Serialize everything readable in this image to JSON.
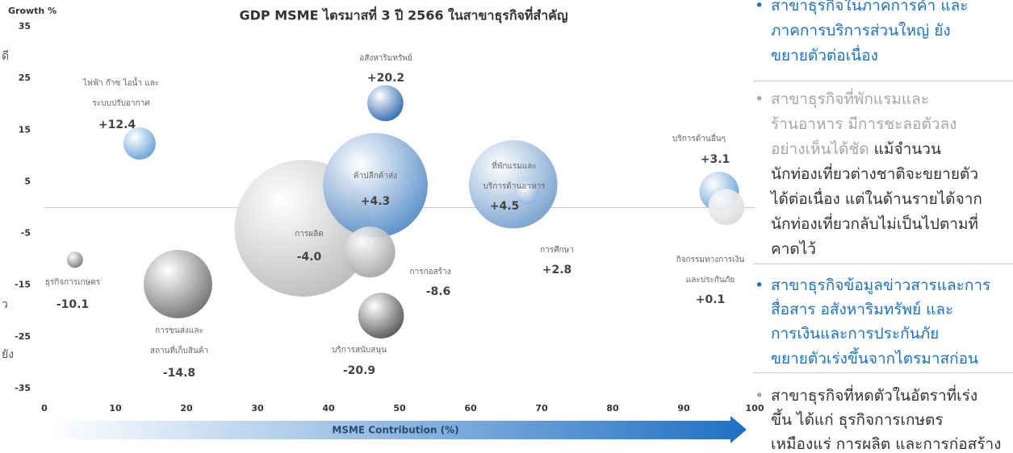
{
  "chart_data": {
    "type": "bubble",
    "title": "GDP MSME ไตรมาสที่ 3 ปี 2566 ในสาขาธุรกิจที่สำคัญ",
    "y_axis_label": "Growth %",
    "x_axis_label": "MSME Contribution (%)",
    "xlim": [
      0,
      100
    ],
    "xticks": [
      0,
      10,
      20,
      30,
      40,
      50,
      60,
      70,
      80,
      90,
      100
    ],
    "ylim": [
      -35,
      35
    ],
    "yticks": [
      -35,
      -25,
      -15,
      -5,
      5,
      15,
      25,
      35
    ],
    "points": [
      {
        "label_lines": [
          "ไฟฟ้า ก๊าซ ไอน้ำ และ",
          "ระบบปรับอากาศ"
        ],
        "x": 13.4,
        "y": 12.4,
        "value_label": "+12.4",
        "size": 4,
        "color": "#5b9bd5"
      },
      {
        "label_lines": [
          "อสังหาริมทรัพย์"
        ],
        "x": 48,
        "y": 20.2,
        "value_label": "+20.2",
        "size": 5,
        "color": "#1f5fa8"
      },
      {
        "label_lines": [
          "ค้าปลีกค้าส่ง"
        ],
        "x": 46.6,
        "y": 4.3,
        "value_label": "+4.3",
        "size": 42,
        "color": "#4f88c6"
      },
      {
        "label_lines": [
          "การผลิต"
        ],
        "x": 36.4,
        "y": -4.0,
        "value_label": "-4.0",
        "size": 72,
        "color": "#b8b8b8"
      },
      {
        "label_lines": [
          "การก่อสร้าง"
        ],
        "x": 45.8,
        "y": -8.6,
        "value_label": "-8.6",
        "size": 10,
        "color": "#a0a0a0"
      },
      {
        "label_lines": [
          "ที่พักแรมและ",
          "บริการด้านอาหาร"
        ],
        "x": 66,
        "y": 4.5,
        "value_label": "+4.5",
        "size": 30,
        "color": "#6e9ccc"
      },
      {
        "label_lines": [
          "การศึกษา"
        ],
        "x": 68,
        "y": 2.8,
        "value_label": "+2.8",
        "size": 2,
        "color": "#8aaed6"
      },
      {
        "label_lines": [
          "บริการด้านอื่นๆ"
        ],
        "x": 95,
        "y": 3.1,
        "value_label": "+3.1",
        "size": 6,
        "color": "#5b9bd5"
      },
      {
        "label_lines": [
          "กิจกรรมทางการเงิน",
          "และประกันภัย"
        ],
        "x": 96,
        "y": 0.1,
        "value_label": "+0.1",
        "size": 5,
        "color": "#d8d8d8"
      },
      {
        "label_lines": [
          "ธุรกิจการเกษตร"
        ],
        "x": 4.3,
        "y": -10.1,
        "value_label": "-10.1",
        "size": 1,
        "color": "#707070"
      },
      {
        "label_lines": [
          "การขนส่งและ",
          "สถานที่เก็บสินค้า"
        ],
        "x": 18.8,
        "y": -14.8,
        "value_label": "-14.8",
        "size": 18,
        "color": "#6a6a6a"
      },
      {
        "label_lines": [
          "บริการสนับสนุน"
        ],
        "x": 47.4,
        "y": -20.9,
        "value_label": "-20.9",
        "size": 8,
        "color": "#4a4a4a"
      }
    ]
  },
  "edge_fragments": [
    "ดี",
    "ว",
    "ยัง"
  ],
  "notes": [
    {
      "style": "blue",
      "lines": [
        "สาขาธุรกิจในภาคการค้า และ",
        "ภาคการบริการส่วนใหญ่ ยัง",
        "ขยายตัวต่อเนื่อง"
      ]
    },
    {
      "style": "grey",
      "lines": [
        "สาขาธุรกิจที่พักแรมและ",
        "ร้านอาหาร มีการชะลอตัวลง",
        "อย่างเห็นได้ชัด"
      ],
      "detail_lines": [
        " แม้จำนวน",
        "นักท่องเที่ยวต่างชาติจะขยายตัว",
        "ได้ต่อเนื่อง แต่ในด้านรายได้จาก",
        "นักท่องเที่ยวกลับไม่เป็นไปตามที่",
        "คาดไว้"
      ]
    },
    {
      "style": "blue",
      "lines": [
        "สาขาธุรกิจข้อมูลข่าวสารและการ",
        "สื่อสาร อสังหาริมทรัพย์ และ",
        "การเงินและการประกันภัย",
        "ขยายตัวเร่งขึ้นจากไตรมาสก่อน"
      ]
    },
    {
      "style": "dark",
      "lines": [
        "สาขาธุรกิจที่หดตัวในอัตราที่เร่ง",
        "ขึ้น ได้แก่ ธุรกิจการเกษตร",
        "เหมืองแร่ การผลิต และการก่อสร้าง"
      ]
    }
  ]
}
